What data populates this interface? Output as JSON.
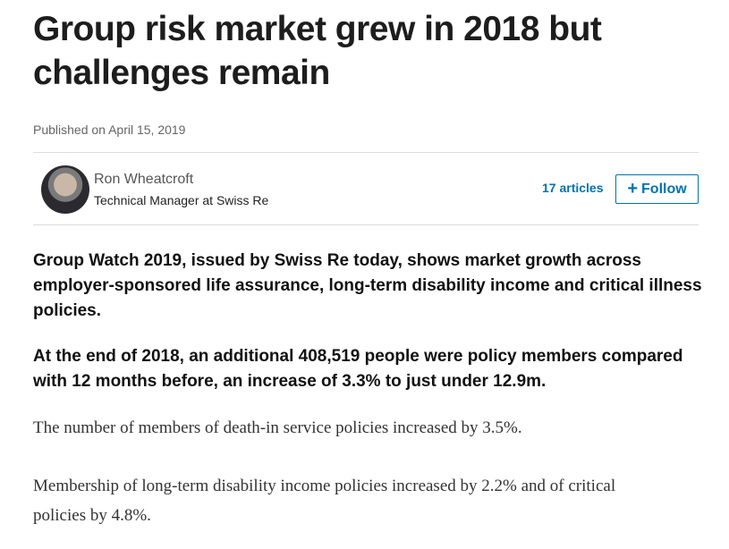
{
  "article": {
    "title": "Group risk market grew in 2018 but challenges remain",
    "published": "Published on April 15, 2019",
    "author": {
      "name": "Ron Wheatcroft",
      "headline": "Technical Manager at Swiss Re",
      "articles": "17 articles",
      "follow_label": "Follow",
      "follow_icon": "plus-icon"
    },
    "paragraphs": [
      "Group Watch 2019, issued by Swiss Re today, shows market growth across employer-sponsored life assurance, long-term disability income and critical illness policies.",
      "At the end of 2018, an additional 408,519 people were policy members compared with 12 months before, an increase of 3.3% to just under 12.9m.",
      "The number of members of death-in service policies increased by 3.5%.",
      "Membership of long-term disability income policies increased by 2.2% and of critical policies by 4.8%."
    ]
  },
  "colors": {
    "accent": "#0073b1"
  }
}
